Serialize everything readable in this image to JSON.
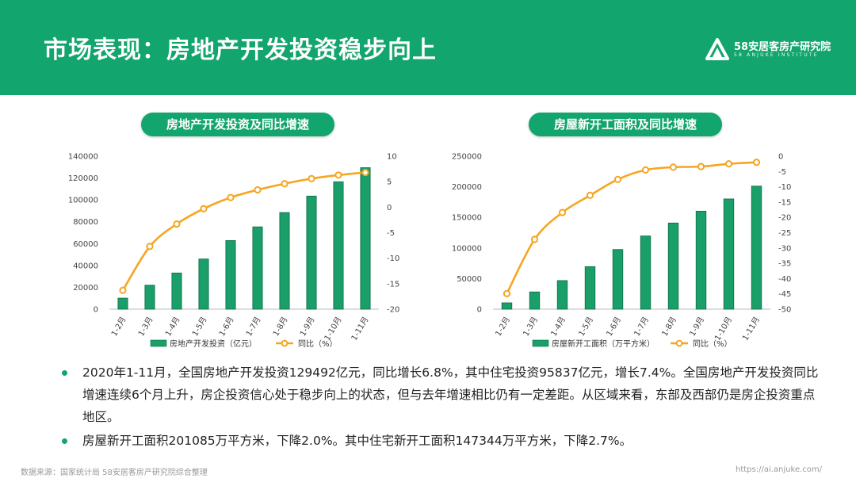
{
  "page": {
    "title": "市场表现：房地产开发投资稳步向上",
    "brand_name": "58安居客房产研究院",
    "brand_sub": "58 ANJUKE INSTITUTE",
    "footer_source": "数据来源：国家统计局 58安居客房产研究院综合整理",
    "footer_url": "https://ai.anjuke.com/"
  },
  "colors": {
    "accent": "#12a56d",
    "bar": "#1a9e6a",
    "line": "#f5a623"
  },
  "bullets": [
    "2020年1-11月，全国房地产开发投资129492亿元，同比增长6.8%，其中住宅投资95837亿元，增长7.4%。全国房地产开发投资同比增速连续6个月上升，房企投资信心处于稳步向上的状态，但与去年增速相比仍有一定差距。从区域来看，东部及西部仍是房企投资重点地区。",
    "房屋新开工面积201085万平方米，下降2.0%。其中住宅新开工面积147344万平方米，下降2.7%。"
  ],
  "chart_data": [
    {
      "type": "bar",
      "title": "房地产开发投资及同比增速",
      "categories": [
        "1-2月",
        "1-3月",
        "1-4月",
        "1-5月",
        "1-6月",
        "1-7月",
        "1-8月",
        "1-9月",
        "1-10月",
        "1-11月"
      ],
      "series": [
        {
          "name": "房地产开发投资（亿元）",
          "type": "bar",
          "axis": "left",
          "values": [
            10115,
            21963,
            33103,
            45920,
            62780,
            75325,
            88454,
            103484,
            116556,
            129492
          ]
        },
        {
          "name": "同比（%）",
          "type": "line",
          "axis": "right",
          "values": [
            -16.3,
            -7.7,
            -3.3,
            -0.3,
            1.9,
            3.4,
            4.6,
            5.6,
            6.3,
            6.8
          ]
        }
      ],
      "ylim_left": [
        0,
        140000
      ],
      "yticks_left": [
        0,
        20000,
        40000,
        60000,
        80000,
        100000,
        120000,
        140000
      ],
      "ylim_right": [
        -20,
        10
      ],
      "yticks_right": [
        -20,
        -15,
        -10,
        -5,
        0,
        5,
        10
      ],
      "legend_position": "bottom"
    },
    {
      "type": "bar",
      "title": "房屋新开工面积及同比增速",
      "categories": [
        "1-2月",
        "1-3月",
        "1-4月",
        "1-5月",
        "1-6月",
        "1-7月",
        "1-8月",
        "1-9月",
        "1-10月",
        "1-11月"
      ],
      "series": [
        {
          "name": "房屋新开工面积（万平方米）",
          "type": "bar",
          "axis": "left",
          "values": [
            10370,
            28203,
            46761,
            69533,
            97536,
            119597,
            140778,
            160146,
            180117,
            201085
          ]
        },
        {
          "name": "同比（%）",
          "type": "line",
          "axis": "right",
          "values": [
            -44.9,
            -27.2,
            -18.4,
            -12.8,
            -7.6,
            -4.5,
            -3.6,
            -3.4,
            -2.5,
            -2.0
          ]
        }
      ],
      "ylim_left": [
        0,
        250000
      ],
      "yticks_left": [
        0,
        50000,
        100000,
        150000,
        200000,
        250000
      ],
      "ylim_right": [
        -50,
        0
      ],
      "yticks_right": [
        -50,
        -45,
        -40,
        -35,
        -30,
        -25,
        -20,
        -15,
        -10,
        -5,
        0
      ],
      "legend_position": "bottom"
    }
  ]
}
